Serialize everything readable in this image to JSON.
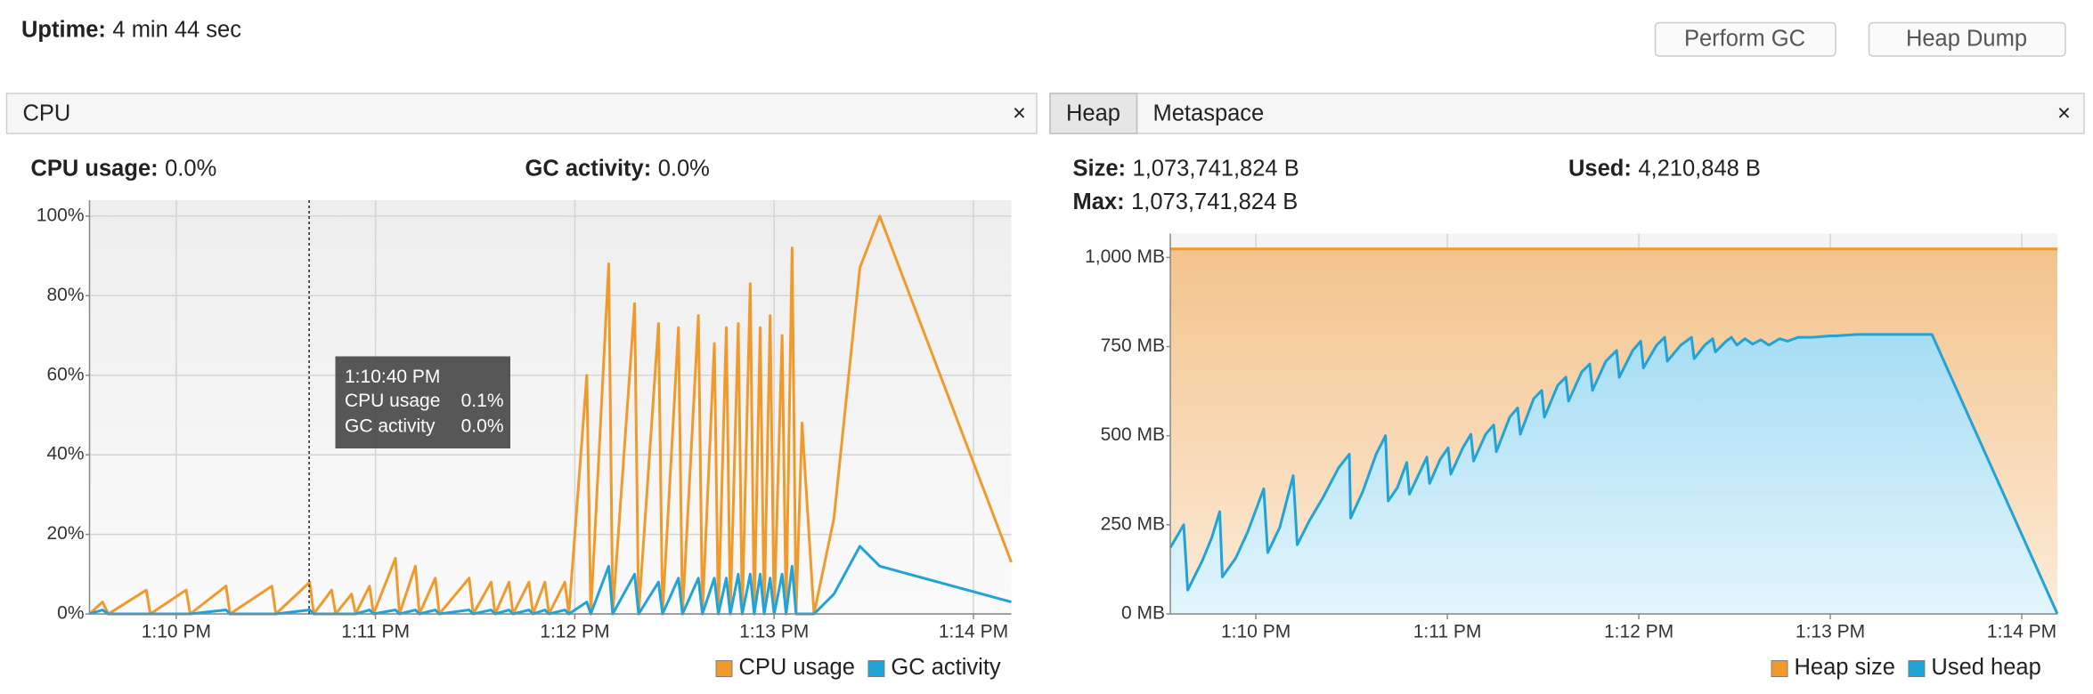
{
  "header": {
    "uptime_label": "Uptime:",
    "uptime": "4 min 44 sec",
    "buttons": [
      "Perform GC",
      "Heap Dump"
    ]
  },
  "cpu_panel": {
    "tab": "CPU",
    "close": "×",
    "stats": [
      {
        "label": "CPU usage:",
        "value": "0.0%"
      },
      {
        "label": "GC activity:",
        "value": "0.0%"
      }
    ],
    "tooltip": {
      "time": "1:10:40 PM",
      "rows": [
        [
          "CPU usage",
          "0.1%"
        ],
        [
          "GC activity",
          "0.0%"
        ]
      ]
    }
  },
  "heap_panel": {
    "tabs": [
      "Heap",
      "Metaspace"
    ],
    "close": "×",
    "stats": [
      {
        "label": "Size:",
        "value": "1,073,741,824 B"
      },
      {
        "label": "Max:",
        "value": "1,073,741,824 B"
      },
      {
        "label": "Used:",
        "value": "4,210,848 B"
      }
    ]
  },
  "chart_data": [
    {
      "type": "line",
      "legend": "bottom-right",
      "grid": true,
      "marker_x": 10.667,
      "xlim": [
        9.565,
        14.19
      ],
      "ylim": [
        0,
        104
      ],
      "xticks": [
        {
          "value": 10,
          "label": "1:10 PM"
        },
        {
          "value": 11,
          "label": "1:11 PM"
        },
        {
          "value": 12,
          "label": "1:12 PM"
        },
        {
          "value": 13,
          "label": "1:13 PM"
        },
        {
          "value": 14,
          "label": "1:14 PM"
        }
      ],
      "yticks": [
        {
          "value": 0,
          "label": "0%"
        },
        {
          "value": 20,
          "label": "20%"
        },
        {
          "value": 40,
          "label": "40%"
        },
        {
          "value": 60,
          "label": "60%"
        },
        {
          "value": 80,
          "label": "80%"
        },
        {
          "value": 100,
          "label": "100%"
        }
      ],
      "x": [
        9.565,
        9.63,
        9.66,
        9.85,
        9.87,
        10.05,
        10.07,
        10.25,
        10.27,
        10.48,
        10.5,
        10.67,
        10.69,
        10.78,
        10.8,
        10.88,
        10.9,
        10.97,
        10.99,
        11.1,
        11.12,
        11.2,
        11.22,
        11.3,
        11.32,
        11.47,
        11.49,
        11.58,
        11.6,
        11.67,
        11.69,
        11.77,
        11.79,
        11.85,
        11.87,
        11.95,
        11.97,
        12.06,
        12.08,
        12.17,
        12.19,
        12.3,
        12.32,
        12.42,
        12.44,
        12.52,
        12.54,
        12.62,
        12.64,
        12.7,
        12.72,
        12.76,
        12.78,
        12.82,
        12.84,
        12.88,
        12.9,
        12.93,
        12.95,
        12.98,
        13.0,
        13.04,
        13.06,
        13.09,
        13.11,
        13.14,
        13.2,
        13.3,
        13.43,
        13.53,
        14.19
      ],
      "series": [
        {
          "name": "CPU usage",
          "color": "#f09a2c",
          "values": [
            0,
            3,
            0,
            6,
            0,
            6,
            0,
            7,
            0,
            7,
            0,
            8,
            0,
            6,
            0,
            5,
            0,
            7,
            0,
            14,
            0,
            12,
            0,
            9,
            0,
            9,
            0,
            8,
            0,
            8,
            0,
            8,
            0,
            8,
            0,
            8,
            0,
            60,
            0,
            88,
            0,
            78,
            0,
            73,
            0,
            72,
            0,
            75,
            0,
            68,
            0,
            72,
            0,
            73,
            0,
            83,
            0,
            72,
            0,
            75,
            0,
            70,
            0,
            92,
            0,
            48,
            0,
            24,
            87,
            100,
            13
          ]
        },
        {
          "name": "GC activity",
          "color": "#1fa3d8",
          "values": [
            0,
            1,
            0,
            0,
            0,
            0,
            0,
            1,
            0,
            0,
            0,
            1,
            0,
            0,
            0,
            0,
            0,
            1,
            0,
            1,
            0,
            1,
            0,
            1,
            0,
            1,
            0,
            1,
            0,
            1,
            0,
            1,
            0,
            1,
            0,
            1,
            0,
            3,
            0,
            12,
            0,
            10,
            0,
            8,
            0,
            9,
            0,
            9,
            0,
            9,
            0,
            9,
            0,
            10,
            0,
            10,
            0,
            10,
            0,
            9,
            0,
            10,
            0,
            12,
            0,
            0,
            0,
            5,
            17,
            12,
            3
          ]
        }
      ]
    },
    {
      "type": "area",
      "legend": "bottom-right",
      "grid": true,
      "xlim": [
        9.553,
        14.186
      ],
      "ylim": [
        0,
        1067
      ],
      "xticks": [
        {
          "value": 10,
          "label": "1:10 PM"
        },
        {
          "value": 11,
          "label": "1:11 PM"
        },
        {
          "value": 12,
          "label": "1:12 PM"
        },
        {
          "value": 13,
          "label": "1:13 PM"
        },
        {
          "value": 14,
          "label": "1:14 PM"
        }
      ],
      "yticks": [
        {
          "value": 0,
          "label": "0 MB"
        },
        {
          "value": 250,
          "label": "250 MB"
        },
        {
          "value": 500,
          "label": "500 MB"
        },
        {
          "value": 750,
          "label": "750 MB"
        },
        {
          "value": 1000,
          "label": "1,000 MB"
        }
      ],
      "series": [
        {
          "name": "Heap size",
          "color": "#f09a2c",
          "x": [
            9.553,
            14.186
          ],
          "values": [
            1024,
            1024
          ]
        },
        {
          "name": "Used heap",
          "color": "#1fa3d8",
          "x": [
            9.553,
            9.623,
            9.644,
            9.72,
            9.769,
            9.811,
            9.825,
            9.895,
            9.958,
            10.041,
            10.062,
            10.125,
            10.195,
            10.216,
            10.279,
            10.349,
            10.432,
            10.488,
            10.495,
            10.558,
            10.628,
            10.677,
            10.691,
            10.739,
            10.788,
            10.802,
            10.851,
            10.893,
            10.907,
            10.962,
            11.004,
            11.018,
            11.081,
            11.123,
            11.137,
            11.2,
            11.242,
            11.256,
            11.326,
            11.367,
            11.381,
            11.451,
            11.493,
            11.507,
            11.577,
            11.619,
            11.633,
            11.702,
            11.744,
            11.758,
            11.828,
            11.884,
            11.898,
            11.968,
            12.01,
            12.024,
            12.093,
            12.135,
            12.149,
            12.219,
            12.275,
            12.289,
            12.344,
            12.386,
            12.4,
            12.456,
            12.484,
            12.512,
            12.554,
            12.595,
            12.637,
            12.679,
            12.735,
            12.777,
            12.833,
            12.903,
            13.0,
            13.028,
            13.14,
            13.531,
            14.186
          ],
          "values": [
            186,
            250,
            67,
            149,
            213,
            287,
            104,
            157,
            231,
            351,
            172,
            243,
            388,
            194,
            261,
            325,
            410,
            448,
            269,
            343,
            448,
            500,
            317,
            354,
            425,
            336,
            392,
            440,
            366,
            433,
            466,
            392,
            466,
            504,
            429,
            504,
            530,
            455,
            552,
            578,
            504,
            604,
            627,
            552,
            642,
            664,
            597,
            679,
            701,
            627,
            709,
            739,
            664,
            739,
            765,
            690,
            754,
            776,
            709,
            754,
            776,
            716,
            754,
            772,
            735,
            765,
            776,
            754,
            772,
            757,
            769,
            754,
            772,
            765,
            776,
            776,
            780,
            780,
            784,
            784,
            0
          ]
        }
      ]
    }
  ]
}
